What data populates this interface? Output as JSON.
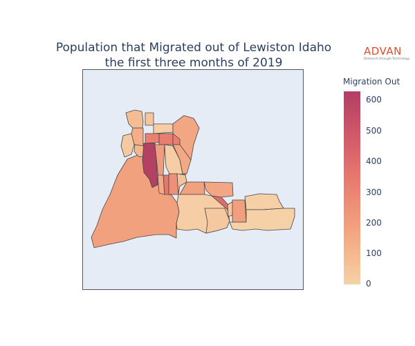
{
  "title_line1": "Population that Migrated out of Lewiston Idaho",
  "title_line2": "the first three months of 2019",
  "logo": {
    "name": "ADVAN",
    "tagline": "Research through Technology",
    "color": "#e04e2b"
  },
  "colorbar": {
    "title": "Migration Out",
    "ticks": [
      "0",
      "100",
      "200",
      "300",
      "400",
      "500",
      "600"
    ],
    "min": 0,
    "max": 630,
    "colors": [
      "#f6d2a9",
      "#f5b78e",
      "#f19c7c",
      "#ea8171",
      "#dd686c",
      "#ca5268",
      "#b13f64"
    ]
  },
  "map": {
    "background": "#e5ecf6",
    "border_color": "#444444",
    "regions": [
      {
        "id": "west-tract",
        "value": 190
      },
      {
        "id": "north-left-a",
        "value": 80
      },
      {
        "id": "north-left-b",
        "value": 140
      },
      {
        "id": "north-strip-a",
        "value": 30
      },
      {
        "id": "north-strip-b",
        "value": 50
      },
      {
        "id": "north-center",
        "value": 20
      },
      {
        "id": "north-right",
        "value": 170
      },
      {
        "id": "north-block-a",
        "value": 320
      },
      {
        "id": "north-block-b",
        "value": 330
      },
      {
        "id": "center-left-strip",
        "value": 110
      },
      {
        "id": "center-peak",
        "value": 620
      },
      {
        "id": "center-mid",
        "value": 210
      },
      {
        "id": "center-right",
        "value": 20
      },
      {
        "id": "east-upper-right",
        "value": 160
      },
      {
        "id": "mid-small-a",
        "value": 150
      },
      {
        "id": "mid-small-b",
        "value": 350
      },
      {
        "id": "mid-small-c",
        "value": 260
      },
      {
        "id": "mid-east-a",
        "value": 60
      },
      {
        "id": "mid-east-b",
        "value": 190
      },
      {
        "id": "mid-east-c",
        "value": 170
      },
      {
        "id": "mid-diag",
        "value": 400
      },
      {
        "id": "south-center",
        "value": 20
      },
      {
        "id": "south-mid",
        "value": 40
      },
      {
        "id": "east-small",
        "value": 40
      },
      {
        "id": "east-tall",
        "value": 200
      },
      {
        "id": "far-east-top",
        "value": 10
      },
      {
        "id": "far-east-bottom",
        "value": 5
      }
    ]
  }
}
